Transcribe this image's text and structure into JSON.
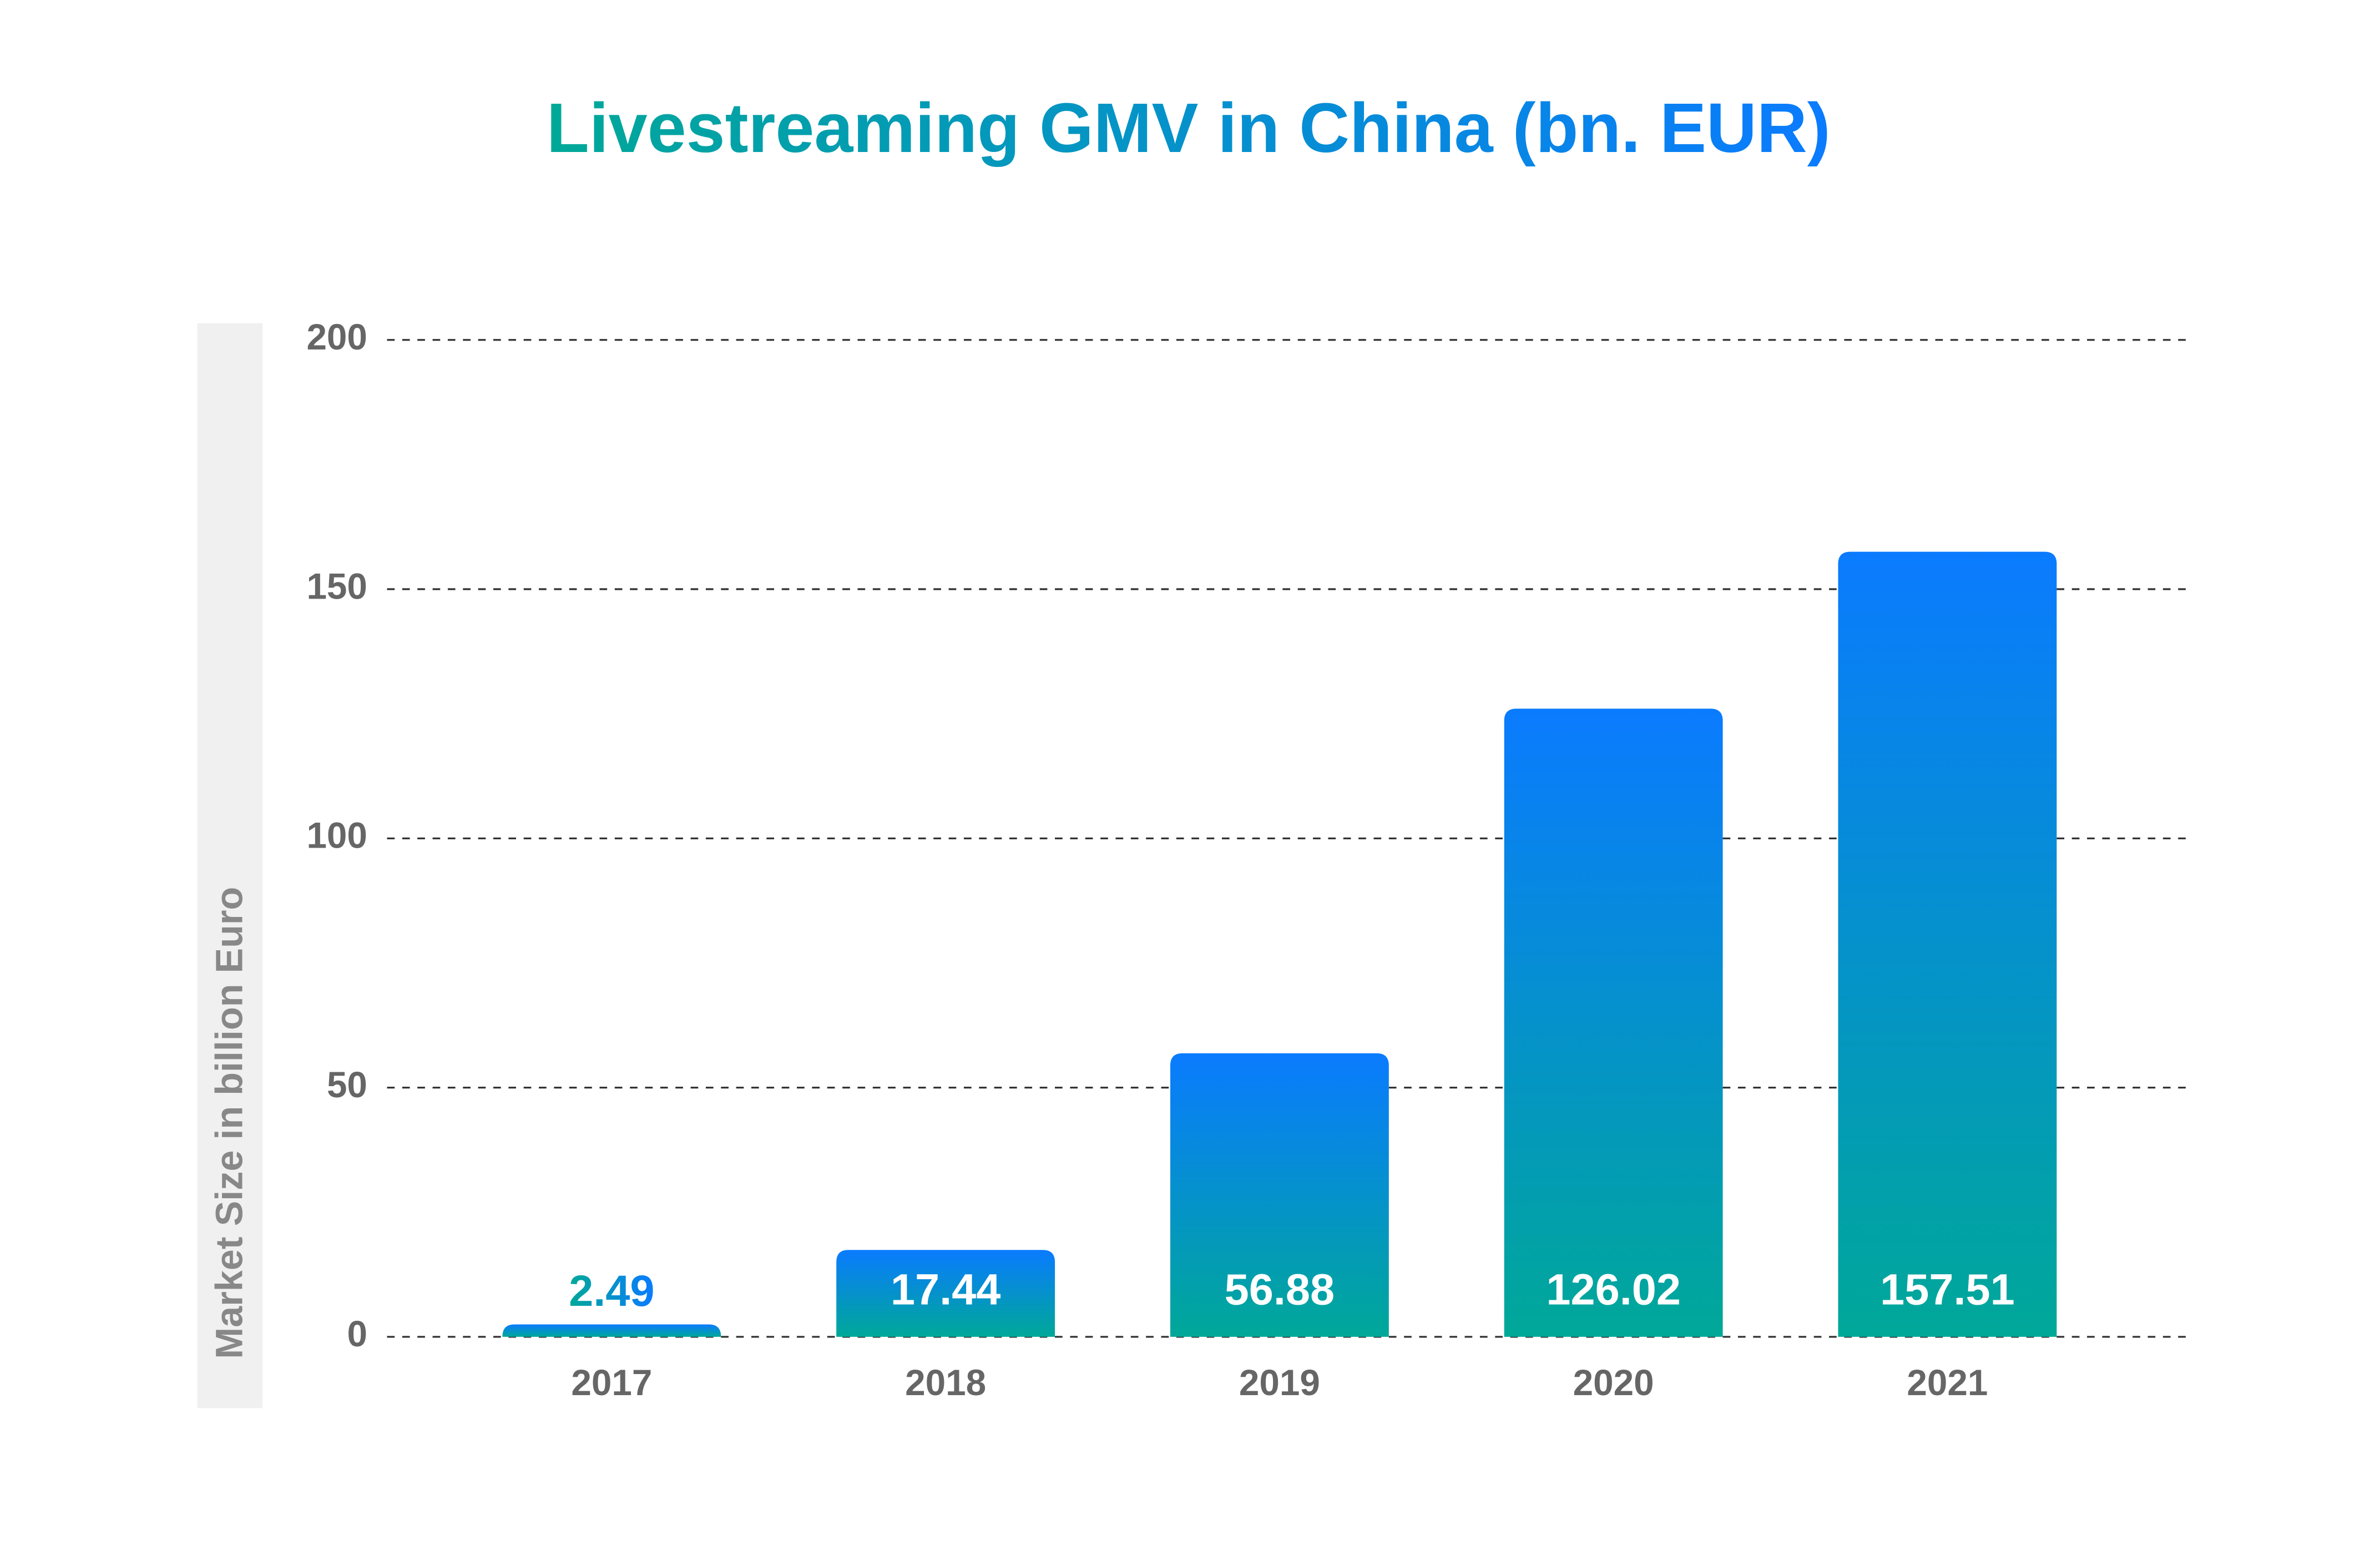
{
  "chart_data": {
    "type": "bar",
    "title": "Livestreaming GMV in China (bn. EUR)",
    "y_label": "Market Size in billion Euro",
    "categories": [
      "2017",
      "2018",
      "2019",
      "2020",
      "2021"
    ],
    "values": [
      2.49,
      17.44,
      56.88,
      126.02,
      157.51
    ],
    "gradient": [
      "#0a7bff",
      "#00a898"
    ],
    "ylim": [
      0,
      200
    ],
    "yticks": [
      0,
      50,
      100,
      150,
      200
    ],
    "grid": true
  }
}
